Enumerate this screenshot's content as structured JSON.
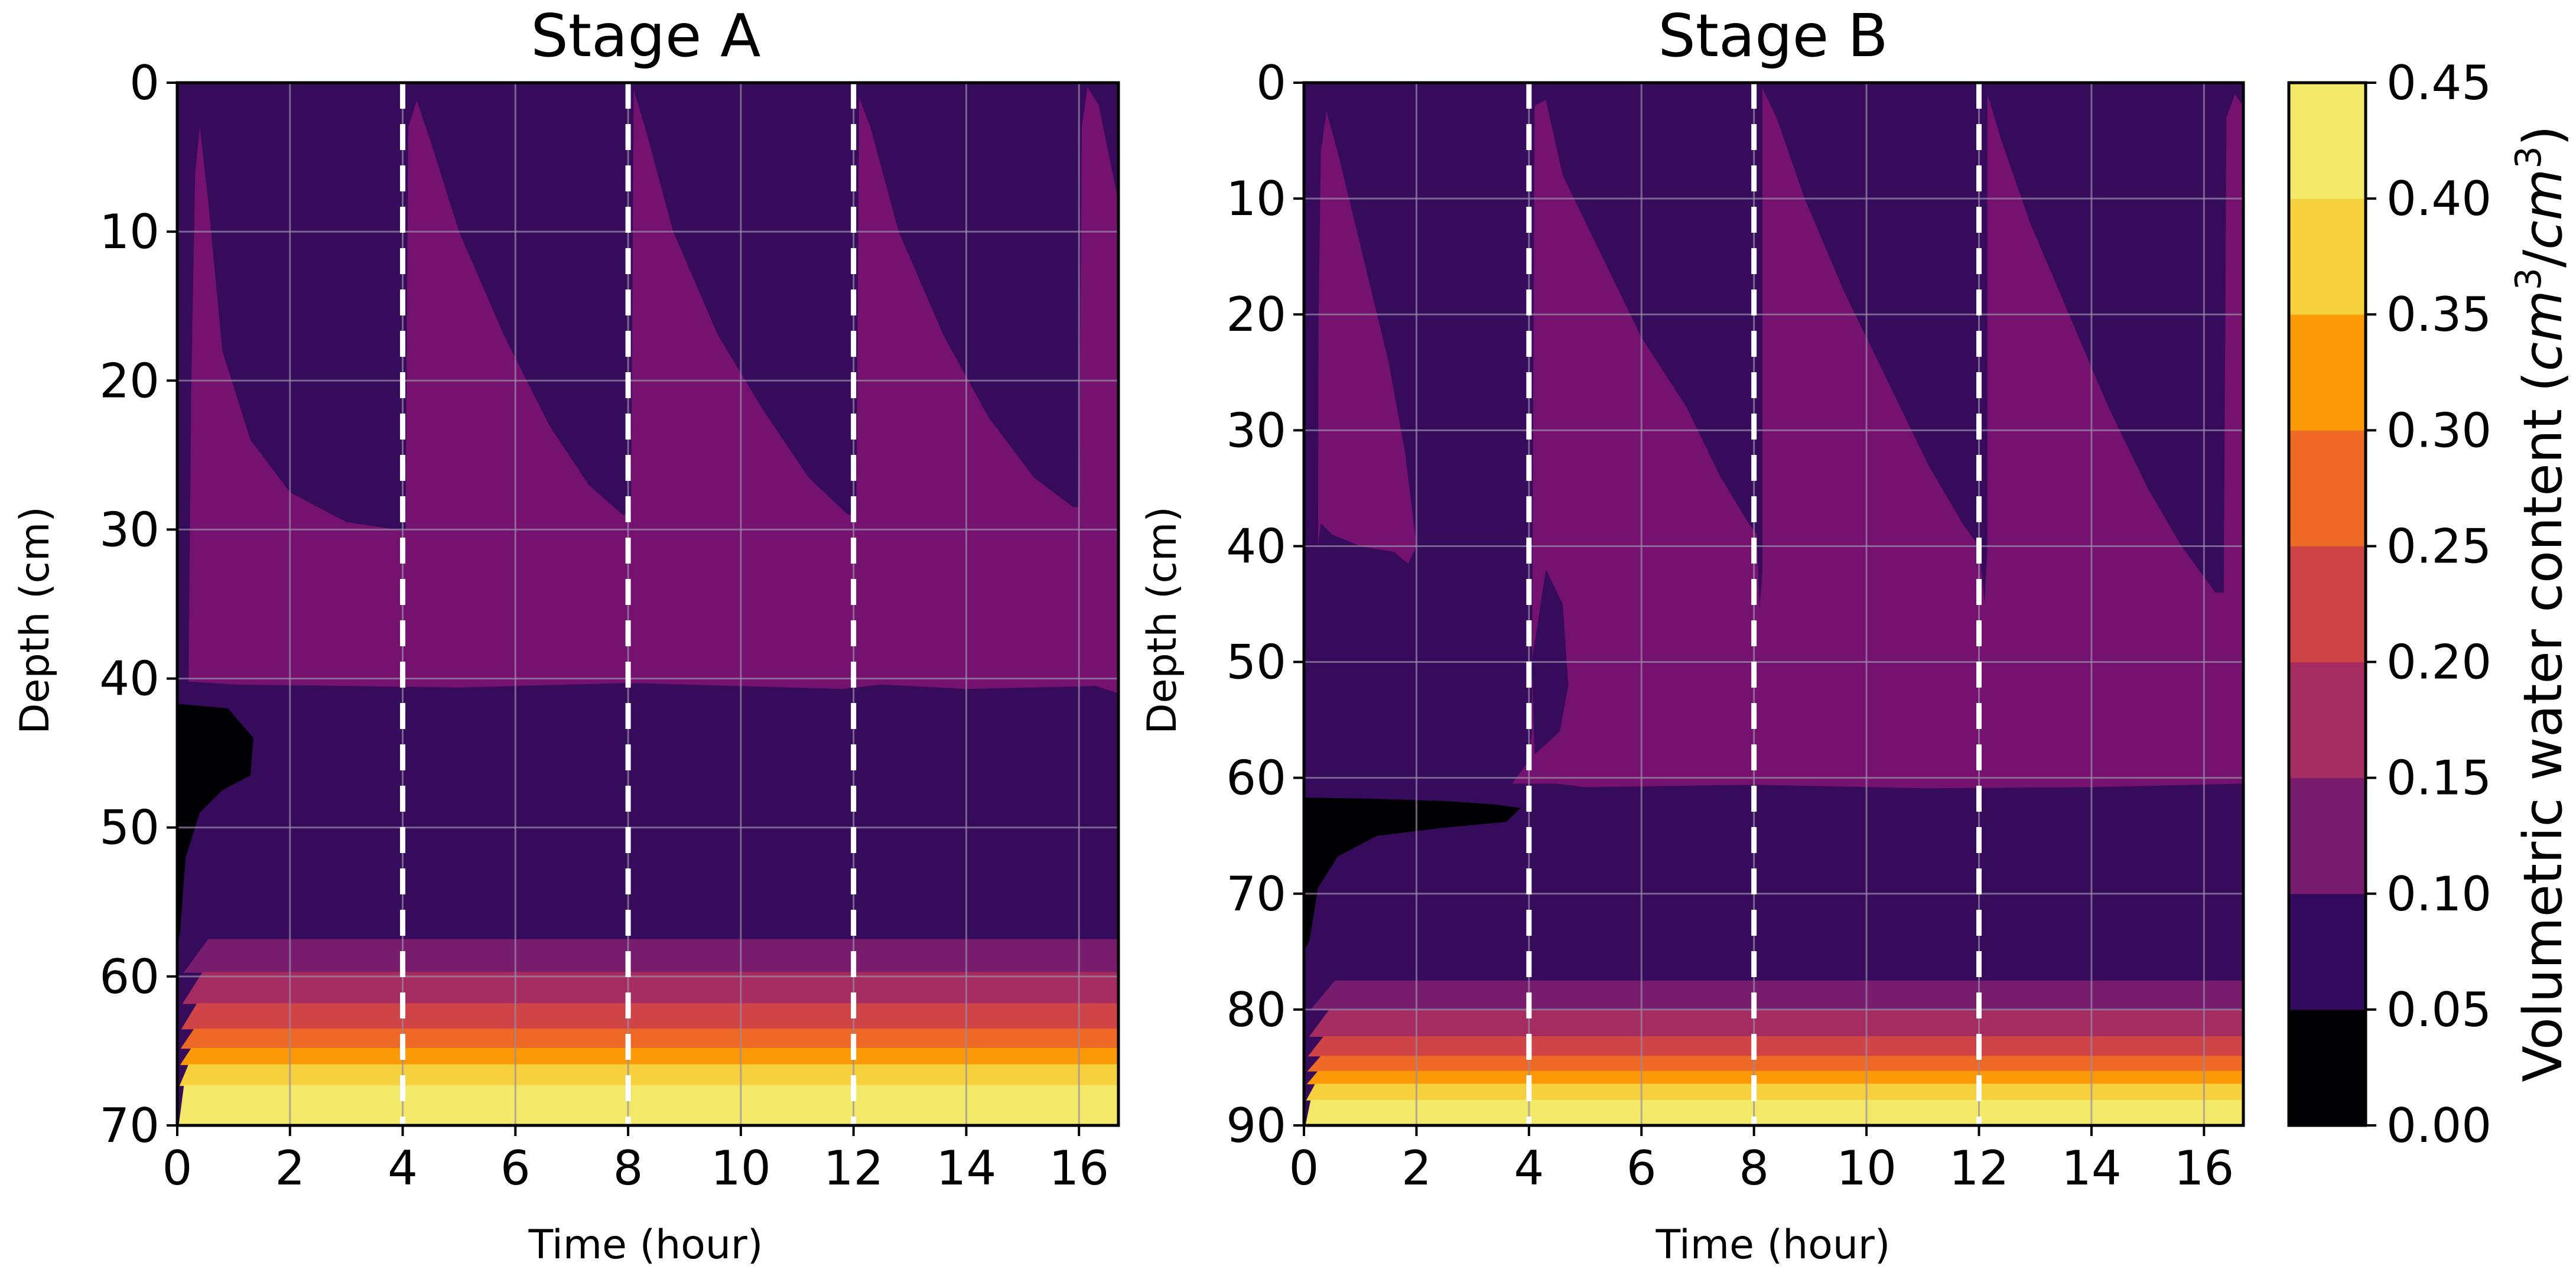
{
  "chart_data": [
    {
      "type": "heatmap",
      "subtype": "filled-contour",
      "title": "Stage A",
      "xlabel": "Time (hour)",
      "ylabel": "Depth (cm)",
      "xlim": [
        0,
        16.7
      ],
      "ylim": [
        0,
        70
      ],
      "y_inverted": true,
      "xticks": [
        0,
        2,
        4,
        6,
        8,
        10,
        12,
        14,
        16
      ],
      "yticks": [
        0,
        10,
        20,
        30,
        40,
        50,
        60,
        70
      ],
      "grid": true,
      "event_lines_hours": [
        4,
        8,
        12
      ],
      "event_line_style": "white dashed",
      "bands_depth_cm": {
        "deep_moist_transition": [
          {
            "range": [
              57.5,
              59.7
            ],
            "value_range": [
              0.1,
              0.15
            ]
          },
          {
            "range": [
              59.7,
              61.8
            ],
            "value_range": [
              0.15,
              0.2
            ]
          },
          {
            "range": [
              61.8,
              63.5
            ],
            "value_range": [
              0.2,
              0.25
            ]
          },
          {
            "range": [
              63.5,
              64.8
            ],
            "value_range": [
              0.25,
              0.3
            ]
          },
          {
            "range": [
              64.8,
              65.9
            ],
            "value_range": [
              0.3,
              0.35
            ]
          },
          {
            "range": [
              65.9,
              67.3
            ],
            "value_range": [
              0.35,
              0.4
            ]
          },
          {
            "range": [
              67.3,
              70.0
            ],
            "value_range": [
              0.4,
              0.45
            ]
          }
        ],
        "upper_wet_zone_bottom": 40.5,
        "dry_core_region": "depth 41.5-57 cm near t=0-1.3 h (0.00-0.05)"
      }
    },
    {
      "type": "heatmap",
      "subtype": "filled-contour",
      "title": "Stage B",
      "xlabel": "Time (hour)",
      "ylabel": "Depth (cm)",
      "xlim": [
        0,
        16.7
      ],
      "ylim": [
        0,
        90
      ],
      "y_inverted": true,
      "xticks": [
        0,
        2,
        4,
        6,
        8,
        10,
        12,
        14,
        16
      ],
      "yticks": [
        0,
        10,
        20,
        30,
        40,
        50,
        60,
        70,
        80,
        90
      ],
      "grid": true,
      "event_lines_hours": [
        4,
        8,
        12
      ],
      "event_line_style": "white dashed",
      "bands_depth_cm": {
        "deep_moist_transition": [
          {
            "range": [
              77.5,
              80.0
            ],
            "value_range": [
              0.1,
              0.15
            ]
          },
          {
            "range": [
              80.0,
              82.3
            ],
            "value_range": [
              0.15,
              0.2
            ]
          },
          {
            "range": [
              82.3,
              84.0
            ],
            "value_range": [
              0.2,
              0.25
            ]
          },
          {
            "range": [
              84.0,
              85.3
            ],
            "value_range": [
              0.25,
              0.3
            ]
          },
          {
            "range": [
              85.3,
              86.4
            ],
            "value_range": [
              0.3,
              0.35
            ]
          },
          {
            "range": [
              86.4,
              87.8
            ],
            "value_range": [
              0.35,
              0.4
            ]
          },
          {
            "range": [
              87.8,
              90.0
            ],
            "value_range": [
              0.4,
              0.45
            ]
          }
        ],
        "upper_wet_zone_bottom": 60.5,
        "dry_core_region": "depth 61.5-75 cm near t=0-4 h (0.00-0.05)"
      }
    }
  ],
  "colorbar": {
    "label_prefix": "Volumetric water content (",
    "label_unit_num": "cm",
    "label_unit_den": "cm",
    "label_exp": "3",
    "levels": [
      0.0,
      0.05,
      0.1,
      0.15,
      0.2,
      0.25,
      0.3,
      0.35,
      0.4,
      0.45
    ],
    "tick_labels": [
      "0.00",
      "0.05",
      "0.10",
      "0.15",
      "0.20",
      "0.25",
      "0.30",
      "0.35",
      "0.40",
      "0.45"
    ],
    "colors": [
      "#000004",
      "#320a5e",
      "#781c6d",
      "#a52c60",
      "#cf4446",
      "#ed6925",
      "#fb9a06",
      "#f7d13d",
      "#f3e968"
    ]
  },
  "colors": {
    "dry": "#000004",
    "base": "#360b5c",
    "wet": "#75126f",
    "grid": "#9a8aa8",
    "event_line": "#ffffff"
  }
}
